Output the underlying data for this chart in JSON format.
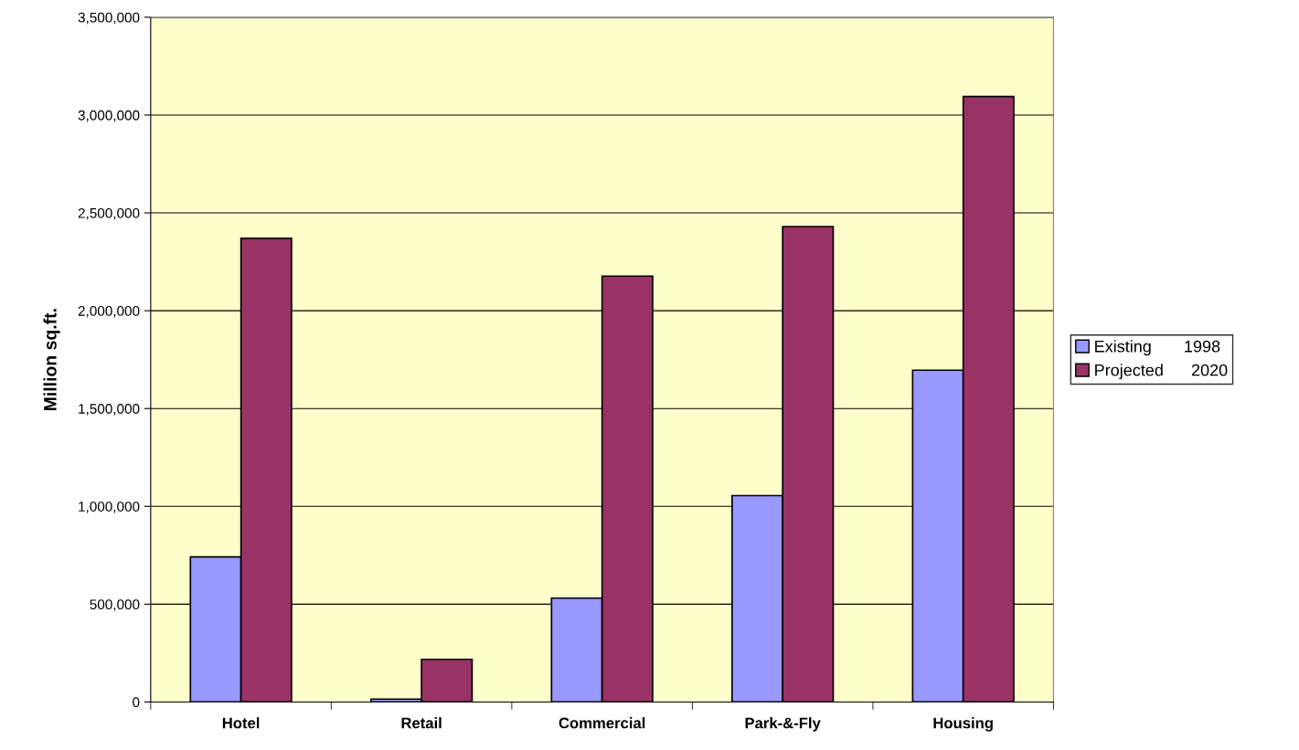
{
  "chart_data": {
    "type": "bar",
    "ylabel": "Million sq.ft.",
    "categories": [
      "Hotel",
      "Retail",
      "Commercial",
      "Park-&-Fly",
      "Housing"
    ],
    "series": [
      {
        "name": "Existing       1998",
        "color": "#9999ff",
        "values": [
          742000,
          15000,
          531000,
          1055000,
          1696000
        ]
      },
      {
        "name": "Projected      2020",
        "color": "#993366",
        "values": [
          2370000,
          218000,
          2177000,
          2430000,
          3095000
        ]
      }
    ],
    "ylim": [
      0,
      3500000
    ],
    "yticks": [
      {
        "value": 0,
        "label": "0"
      },
      {
        "value": 500000,
        "label": "500,000"
      },
      {
        "value": 1000000,
        "label": "1,000,000"
      },
      {
        "value": 1500000,
        "label": "1,500,000"
      },
      {
        "value": 2000000,
        "label": "2,000,000"
      },
      {
        "value": 2500000,
        "label": "2,500,000"
      },
      {
        "value": 3000000,
        "label": "3,000,000"
      },
      {
        "value": 3500000,
        "label": "3,500,000"
      }
    ],
    "grid": "y",
    "legend": "right"
  }
}
